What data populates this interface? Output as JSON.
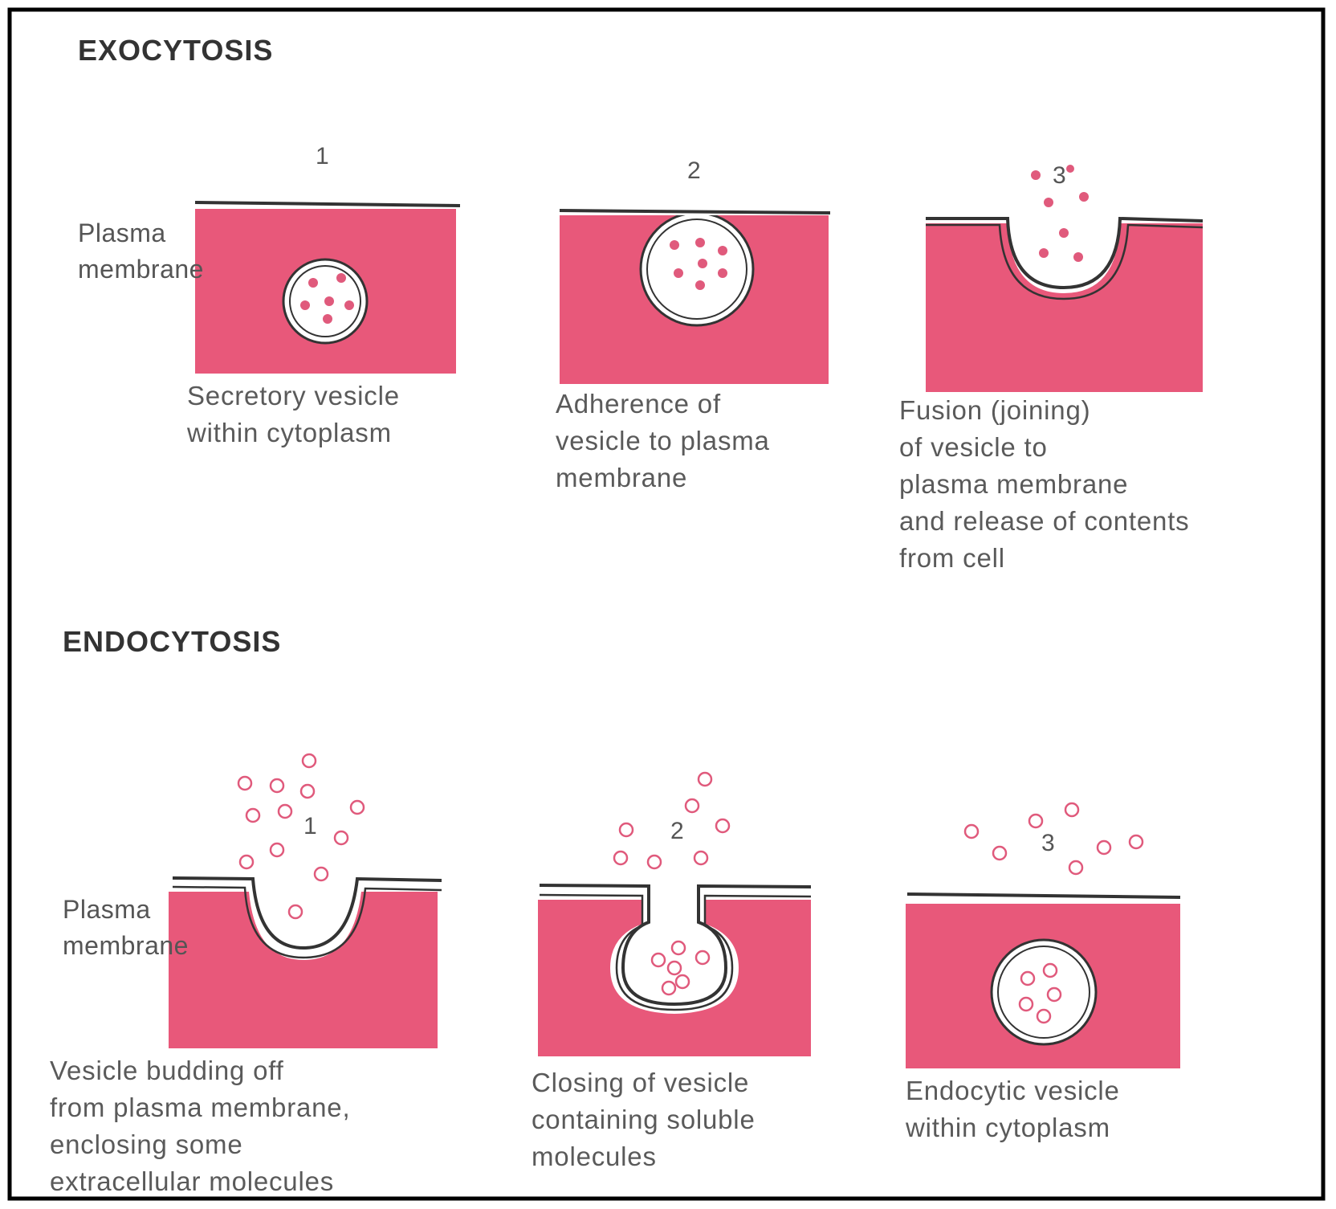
{
  "exocytosis": {
    "heading": "EXOCYTOSIS",
    "membrane_label": "Plasma\nmembrane",
    "steps": [
      {
        "number": "1",
        "caption": "Secretory vesicle\nwithin cytoplasm"
      },
      {
        "number": "2",
        "caption": "Adherence of\nvesicle to plasma\nmembrane"
      },
      {
        "number": "3",
        "caption": "Fusion (joining)\nof vesicle to\nplasma membrane\nand release of contents\nfrom cell"
      }
    ]
  },
  "endocytosis": {
    "heading": "ENDOCYTOSIS",
    "membrane_label": "Plasma\nmembrane",
    "steps": [
      {
        "number": "1",
        "caption": "Vesicle budding off\nfrom plasma membrane,\nenclosing some\nextracellular molecules"
      },
      {
        "number": "2",
        "caption": "Closing of vesicle\ncontaining soluble\nmolecules"
      },
      {
        "number": "3",
        "caption": "Endocytic vesicle\nwithin cytoplasm"
      }
    ]
  },
  "colors": {
    "cytoplasm": "#e8587a",
    "membrane_line": "#333333",
    "molecule": "#e05a7c",
    "border": "#000000"
  }
}
